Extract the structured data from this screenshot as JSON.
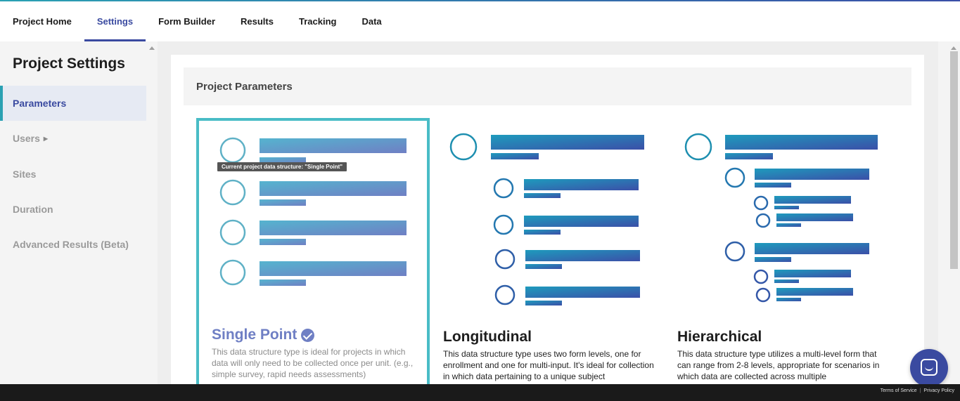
{
  "nav": {
    "tabs": [
      {
        "label": "Project Home"
      },
      {
        "label": "Settings"
      },
      {
        "label": "Form Builder"
      },
      {
        "label": "Results"
      },
      {
        "label": "Tracking"
      },
      {
        "label": "Data"
      }
    ],
    "active": "Settings"
  },
  "sidebar": {
    "title": "Project Settings",
    "items": [
      {
        "label": "Parameters"
      },
      {
        "label": "Users"
      },
      {
        "label": "Sites"
      },
      {
        "label": "Duration"
      },
      {
        "label": "Advanced Results (Beta)"
      }
    ],
    "active": "Parameters"
  },
  "main": {
    "section_title": "Project Parameters",
    "tooltip": "Current project data structure:  \"Single Point\"",
    "options": [
      {
        "title": "Single Point",
        "selected": true,
        "description": "This data structure type is ideal for projects in which data will only need to be collected once per unit. (e.g., simple survey, rapid needs assessments)"
      },
      {
        "title": "Longitudinal",
        "selected": false,
        "description": "This data structure type uses two form levels, one for enrollment and one for multi-input. It's ideal for collection in which data pertaining to a unique subject"
      },
      {
        "title": "Hierarchical",
        "selected": false,
        "description": "This data structure type utilizes a multi-level form that can range from 2-8 levels, appropriate for scenarios in which data are collected across multiple"
      }
    ]
  },
  "footer": {
    "terms": "Terms of Service",
    "separator": "|",
    "privacy": "Privacy Policy"
  },
  "colors": {
    "accent": "#3a4aa0",
    "teal": "#2aa1b3",
    "selected_border": "#49bcc6",
    "selected_title": "#6f7fc4"
  }
}
